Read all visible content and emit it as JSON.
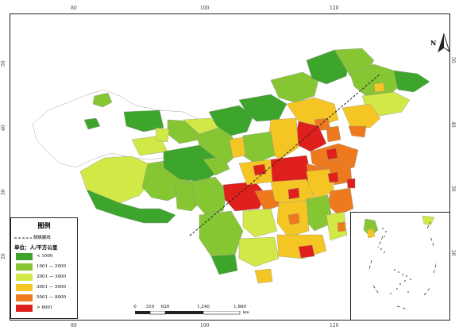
{
  "colors": {
    "c1": "#3ea52c",
    "c2": "#86c633",
    "c3": "#d2e847",
    "c4": "#f5c623",
    "c5": "#ee7a1d",
    "c6": "#de1f1b",
    "outline": "#8f8f8f",
    "boundary": "#222222"
  },
  "axis_ticks": {
    "top": [
      "80",
      "100",
      "120"
    ],
    "bottom": [
      "80",
      "100",
      "120"
    ],
    "left": [
      "50",
      "40",
      "30",
      "20"
    ],
    "right": [
      "50",
      "40",
      "30",
      "20"
    ]
  },
  "north_arrow": {
    "label": "N"
  },
  "legend": {
    "title": "图例",
    "boundary_label": "胡焕庸线",
    "unit_label": "单位：人/平方公里",
    "classes": [
      {
        "range": "< 1000",
        "color": "#3ea52c"
      },
      {
        "range": "1001 — 2000",
        "color": "#86c633"
      },
      {
        "range": "2001 — 3000",
        "color": "#d2e847"
      },
      {
        "range": "3001 — 5000",
        "color": "#f5c623"
      },
      {
        "range": "5001 — 8000",
        "color": "#ee7a1d"
      },
      {
        "range": "> 8001",
        "color": "#de1f1b"
      }
    ]
  },
  "scale_bar": {
    "labels": [
      "0",
      "310",
      "620",
      "1,240",
      "1,860"
    ],
    "unit": "km"
  }
}
